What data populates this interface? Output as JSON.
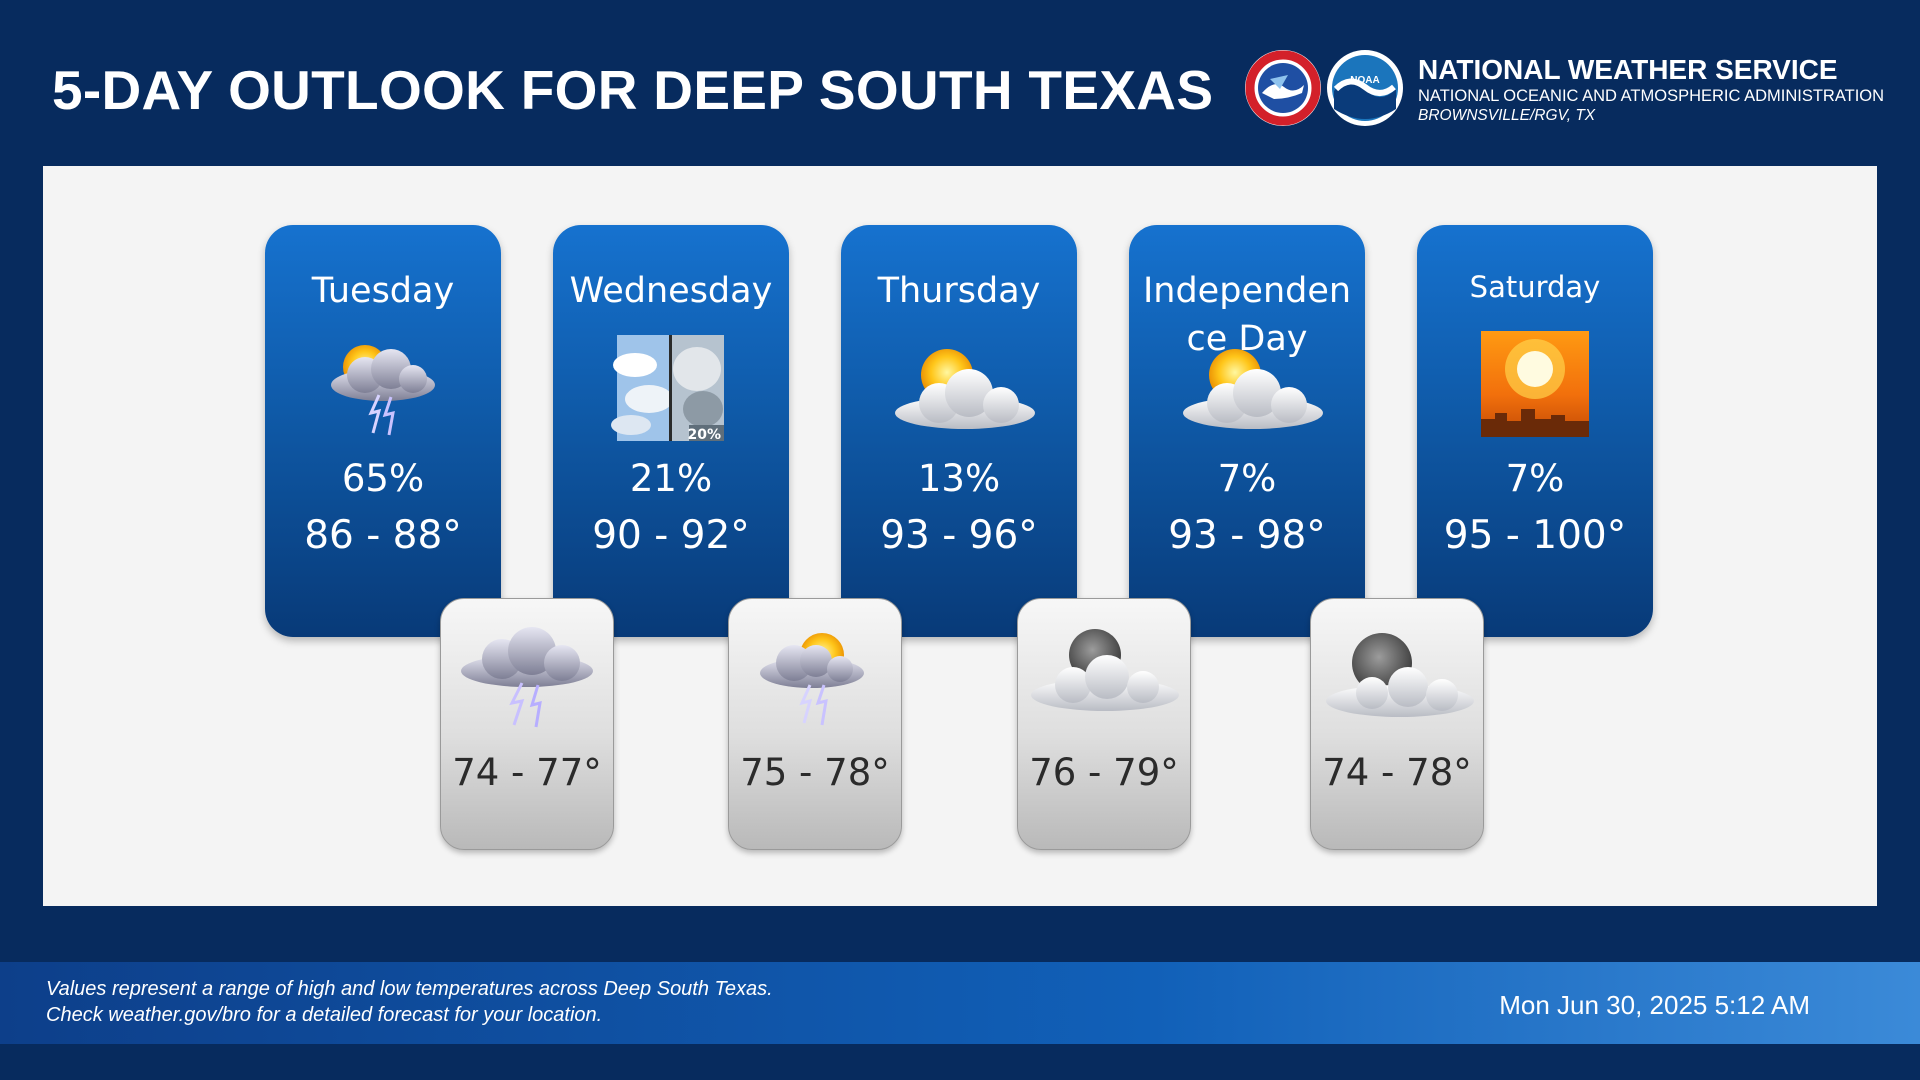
{
  "header": {
    "title": "5-DAY OUTLOOK FOR DEEP SOUTH TEXAS",
    "agency_name": "NATIONAL WEATHER SERVICE",
    "agency_sub": "NATIONAL OCEANIC AND ATMOSPHERIC ADMINISTRATION",
    "office": "BROWNSVILLE/RGV, TX",
    "logos": [
      "nws-logo-icon",
      "noaa-logo-icon"
    ]
  },
  "days": [
    {
      "label": "Tuesday",
      "icon": "partly-cloudy-thunderstorm-icon",
      "pop": "65%",
      "high": "86 - 88°"
    },
    {
      "label": "Wednesday",
      "icon": "split-clouds-photo-icon",
      "icon_badge": "20%",
      "pop": "21%",
      "high": "90 - 92°"
    },
    {
      "label": "Thursday",
      "icon": "mostly-cloudy-sun-icon",
      "pop": "13%",
      "high": "93 - 96°"
    },
    {
      "label": "Independence Day",
      "icon": "mostly-cloudy-sun-icon",
      "pop": "7%",
      "high": "93 - 98°"
    },
    {
      "label": "Saturday",
      "icon": "sunny-skyline-icon",
      "pop": "7%",
      "high": "95 - 100°"
    }
  ],
  "nights": [
    {
      "icon": "thunderstorm-cloud-icon",
      "low": "74 - 77°"
    },
    {
      "icon": "partly-cloudy-thunderstorm-icon",
      "low": "75 - 78°"
    },
    {
      "icon": "mostly-cloudy-moon-icon",
      "low": "76 - 79°"
    },
    {
      "icon": "mostly-cloudy-moon-icon",
      "low": "74 - 78°"
    }
  ],
  "footer": {
    "note_line1": "Values represent a range of high and low temperatures across Deep South Texas.",
    "note_line2": "Check weather.gov/bro for a detailed forecast for your location.",
    "timestamp": "Mon Jun 30, 2025 5:12 AM"
  },
  "colors": {
    "background": "#072b5e",
    "panel": "#f4f4f4",
    "day_card_top": "#1672cf",
    "day_card_bottom": "#083a78",
    "footer_right": "#3b8ad8"
  }
}
